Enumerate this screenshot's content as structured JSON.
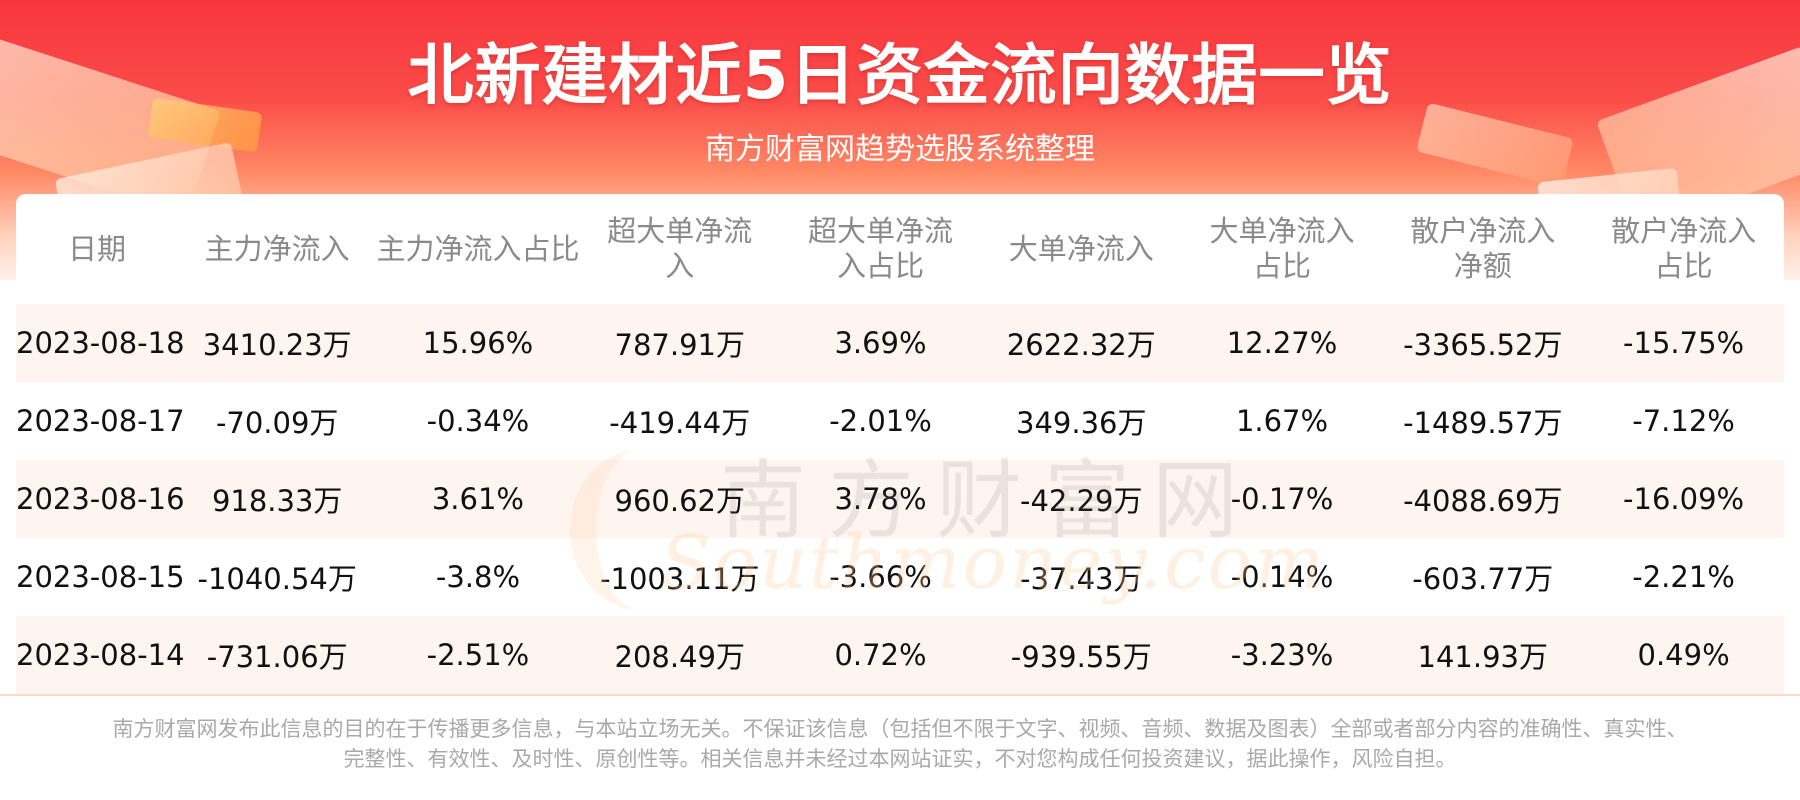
{
  "header": {
    "title": "北新建材近5日资金流向数据一览",
    "subtitle": "南方财富网趋势选股系统整理"
  },
  "watermark": {
    "cn": "南方财富网",
    "en": "Southmoney.com"
  },
  "table": {
    "columns": [
      "日期",
      "主力净流入",
      "主力净流入占比",
      "超大单净流入",
      "超大单净流入占比",
      "大单净流入",
      "大单净流入占比",
      "散户净流入净额",
      "散户净流入占比"
    ],
    "rows": [
      [
        "2023-08-18",
        "3410.23万",
        "15.96%",
        "787.91万",
        "3.69%",
        "2622.32万",
        "12.27%",
        "-3365.52万",
        "-15.75%"
      ],
      [
        "2023-08-17",
        "-70.09万",
        "-0.34%",
        "-419.44万",
        "-2.01%",
        "349.36万",
        "1.67%",
        "-1489.57万",
        "-7.12%"
      ],
      [
        "2023-08-16",
        "918.33万",
        "3.61%",
        "960.62万",
        "3.78%",
        "-42.29万",
        "-0.17%",
        "-4088.69万",
        "-16.09%"
      ],
      [
        "2023-08-15",
        "-1040.54万",
        "-3.8%",
        "-1003.11万",
        "-3.66%",
        "-37.43万",
        "-0.14%",
        "-603.77万",
        "-2.21%"
      ],
      [
        "2023-08-14",
        "-731.06万",
        "-2.51%",
        "208.49万",
        "0.72%",
        "-939.55万",
        "-3.23%",
        "141.93万",
        "0.49%"
      ]
    ]
  },
  "footer": {
    "line1": "南方财富网发布此信息的目的在于传播更多信息，与本站立场无关。不保证该信息（包括但不限于文字、视频、音频、数据及图表）全部或者部分内容的准确性、真实性、",
    "line2": "完整性、有效性、及时性、原创性等。相关信息并未经过本网站证实，不对您构成任何投资建议，据此操作，风险自担。"
  },
  "colors": {
    "banner_red": "#f8363f",
    "row_tint": "#fff5f0",
    "header_text": "#8a8a8a",
    "footer_text": "#a9a9a9"
  }
}
